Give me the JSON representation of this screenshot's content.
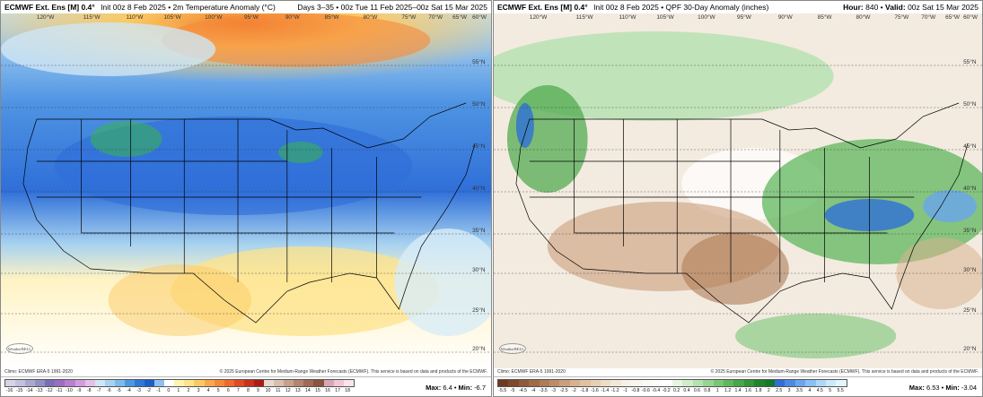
{
  "left": {
    "model": "ECMWF Ext. Ens [M] 0.4°",
    "init": "Init 00z 8 Feb 2025 • 2m Temperature Anomaly (°C)",
    "right_text": "Days 3–35 • 00z Tue 11 Feb 2025–00z Sat 15 Mar 2025",
    "climo": "Climo: ECMWF ERA-5 1991-2020",
    "copyright": "© 2025 European Centre for Medium-Range Weather Forecasts (ECMWF). This service is based on data and products of the ECMWF.",
    "logo": "WeatherBELL",
    "max_label": "Max:",
    "max_value": "6.4",
    "min_label": "Min:",
    "min_value": "-6.7",
    "scale": [
      "-16",
      "-15",
      "-14",
      "-13",
      "-12",
      "-11",
      "-10",
      "-9",
      "-8",
      "-7",
      "-6",
      "-5",
      "-4",
      "-3",
      "-2",
      "-1",
      "0",
      "1",
      "2",
      "3",
      "4",
      "5",
      "6",
      "7",
      "8",
      "9",
      "10",
      "11",
      "12",
      "13",
      "14",
      "15",
      "16",
      "17",
      "18"
    ],
    "lon_labels": [
      "120°W",
      "115°W",
      "110°W",
      "105°W",
      "100°W",
      "95°W",
      "90°W",
      "85°W",
      "80°W",
      "75°W",
      "70°W",
      "65°W",
      "60°W"
    ],
    "lat_labels": [
      "55°N",
      "50°N",
      "45°N",
      "40°N",
      "35°N",
      "30°N",
      "25°N",
      "20°N"
    ]
  },
  "right": {
    "model": "ECMWF Ext. Ens [M] 0.4°",
    "init": "Init 00z 8 Feb 2025 • QPF 30-Day Anomaly (inches)",
    "hour_label": "Hour:",
    "hour_value": "840",
    "valid_label": "Valid:",
    "valid_value": "00z Sat 15 Mar 2025",
    "climo": "Climo: ECMWF ERA-5 1991-2020",
    "copyright": "© 2025 European Centre for Medium-Range Weather Forecasts (ECMWF). This service is based on data and products of the ECMWF.",
    "logo": "WeatherBELL",
    "max_label": "Max:",
    "max_value": "6.53",
    "min_label": "Min:",
    "min_value": "-3.04",
    "scale": [
      "-5.5",
      "-5",
      "-4.5",
      "-4",
      "-3.5",
      "-3",
      "-2.5",
      "-2",
      "-1.8",
      "-1.6",
      "-1.4",
      "-1.2",
      "-1",
      "-0.8",
      "-0.6",
      "-0.4",
      "-0.2",
      "0.2",
      "0.4",
      "0.6",
      "0.8",
      "1",
      "1.2",
      "1.4",
      "1.6",
      "1.8",
      "2",
      "2.5",
      "3",
      "3.5",
      "4",
      "4.5",
      "5",
      "5.5"
    ],
    "lon_labels": [
      "120°W",
      "115°W",
      "110°W",
      "105°W",
      "100°W",
      "95°W",
      "90°W",
      "85°W",
      "80°W",
      "75°W",
      "70°W",
      "65°W",
      "60°W"
    ],
    "lat_labels": [
      "55°N",
      "50°N",
      "45°N",
      "40°N",
      "35°N",
      "30°N",
      "25°N",
      "20°N"
    ]
  },
  "colors": {
    "temp_scale": [
      "#d4d4e8",
      "#c2c2de",
      "#a8a8d0",
      "#9090c4",
      "#7a6fb6",
      "#9b6ec0",
      "#b97fd0",
      "#d19ddd",
      "#e4bfe8",
      "#cfe6f5",
      "#a7d2f0",
      "#7dbbea",
      "#4c98e5",
      "#2f78d8",
      "#1e5fc6",
      "#8fc0ef",
      "#ffffff",
      "#fff3b0",
      "#fde38a",
      "#fbc964",
      "#f9a94a",
      "#f5893a",
      "#ee6a2c",
      "#e04a24",
      "#c8321c",
      "#a81e14",
      "#e8d8d0",
      "#d9bfb0",
      "#c7a18e",
      "#b5846e",
      "#a06a54",
      "#8a5440",
      "#d9a6b6",
      "#f0c7d6",
      "#fbe3ec"
    ],
    "qpf_scale": [
      "#6d3a20",
      "#7e4a2c",
      "#8f5a38",
      "#9f6b47",
      "#ae7c56",
      "#bd8d67",
      "#cb9f7b",
      "#d8b290",
      "#e0c1a2",
      "#e7cfb4",
      "#edddc6",
      "#f2e8d8",
      "#f6f0e6",
      "#f9f5ee",
      "#fbf9f4",
      "#fdfcf9",
      "#ffffff",
      "#e7f5e3",
      "#cfeccb",
      "#b4e1b0",
      "#97d493",
      "#7ac677",
      "#5fb75e",
      "#47a649",
      "#329537",
      "#1f8429",
      "#0f7a2a",
      "#2f6fd6",
      "#4c8ae3",
      "#6aa5ee",
      "#8ac0f4",
      "#abd8f8",
      "#c9eafb",
      "#e4f6fd"
    ],
    "land_temp_base": "#3f86e0",
    "qpf_base": "#f3ebe0"
  }
}
